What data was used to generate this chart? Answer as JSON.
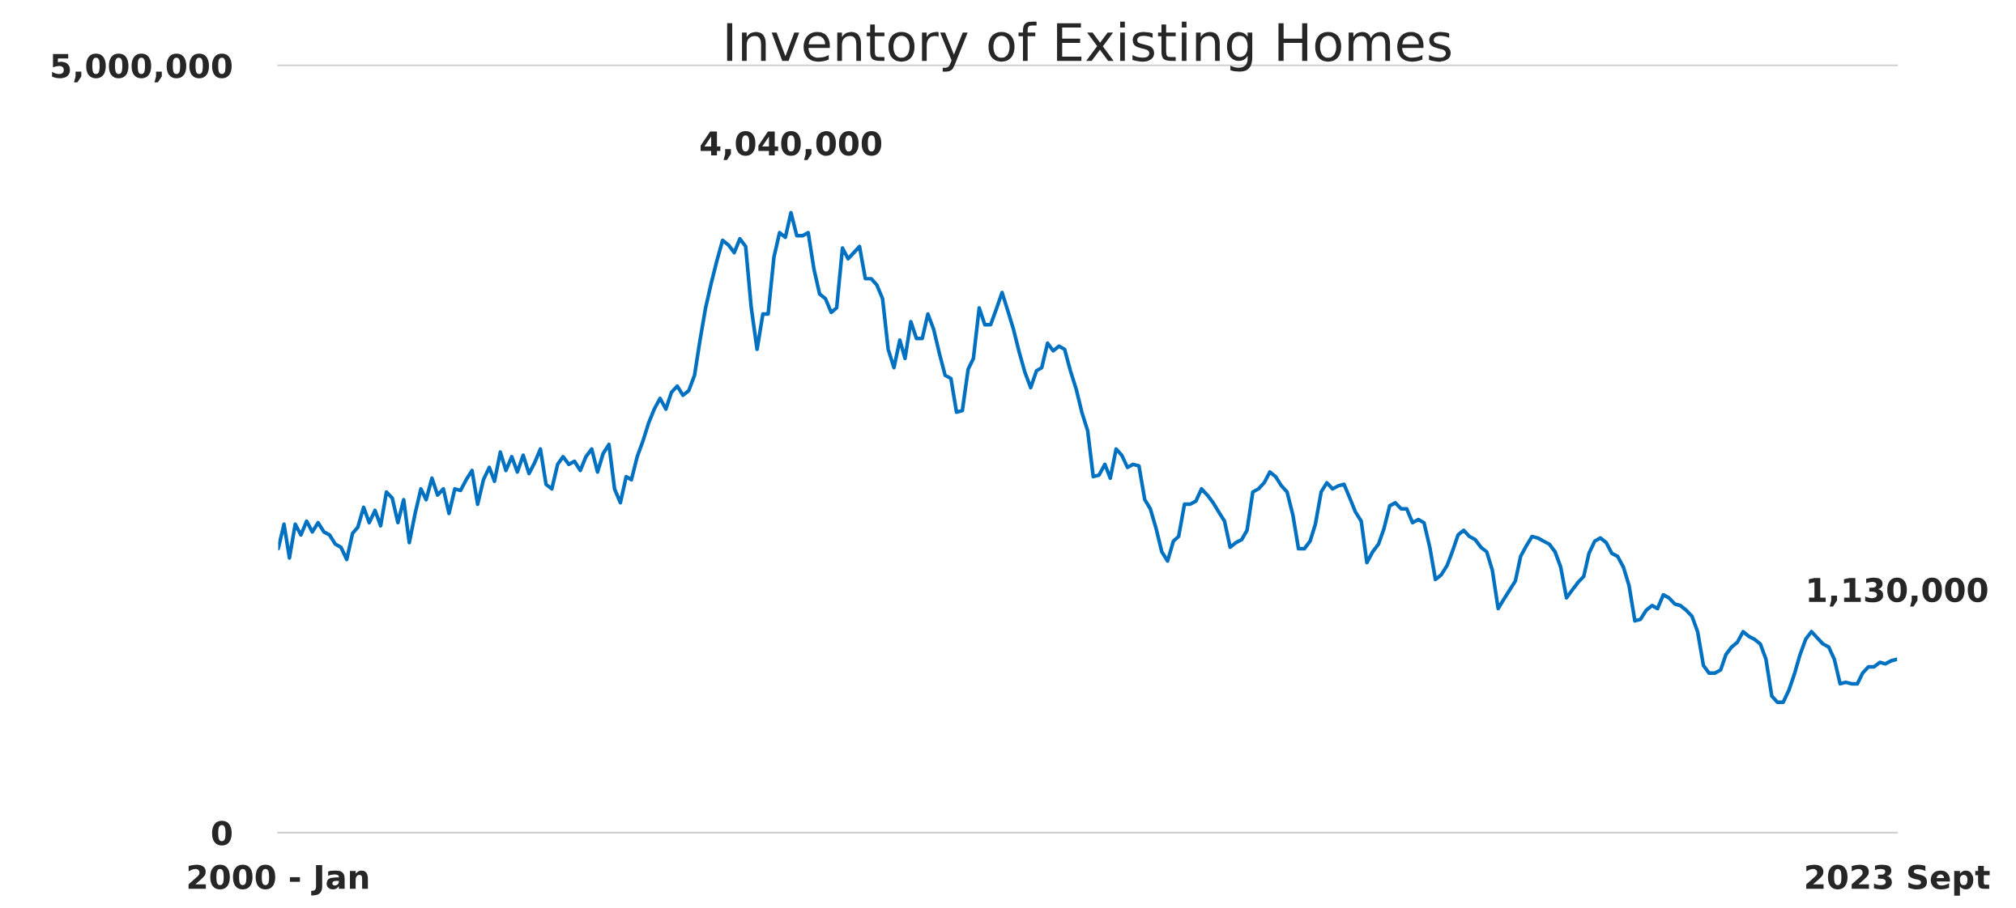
{
  "chart_data": {
    "type": "line",
    "title": "Inventory of Existing Homes",
    "x": [
      "2000-01",
      "2000-02",
      "2000-03",
      "2000-04",
      "2000-05",
      "2000-06",
      "2000-07",
      "2000-08",
      "2000-09",
      "2000-10",
      "2000-11",
      "2000-12",
      "2001-01",
      "2001-02",
      "2001-03",
      "2001-04",
      "2001-05",
      "2001-06",
      "2001-07",
      "2001-08",
      "2001-09",
      "2001-10",
      "2001-11",
      "2001-12",
      "2002-01",
      "2002-02",
      "2002-03",
      "2002-04",
      "2002-05",
      "2002-06",
      "2002-07",
      "2002-08",
      "2002-09",
      "2002-10",
      "2002-11",
      "2002-12",
      "2003-01",
      "2003-02",
      "2003-03",
      "2003-04",
      "2003-05",
      "2003-06",
      "2003-07",
      "2003-08",
      "2003-09",
      "2003-10",
      "2003-11",
      "2003-12",
      "2004-01",
      "2004-02",
      "2004-03",
      "2004-04",
      "2004-05",
      "2004-06",
      "2004-07",
      "2004-08",
      "2004-09",
      "2004-10",
      "2004-11",
      "2004-12",
      "2005-01",
      "2005-02",
      "2005-03",
      "2005-04",
      "2005-05",
      "2005-06",
      "2005-07",
      "2005-08",
      "2005-09",
      "2005-10",
      "2005-11",
      "2005-12",
      "2006-01",
      "2006-02",
      "2006-03",
      "2006-04",
      "2006-05",
      "2006-06",
      "2006-07",
      "2006-08",
      "2006-09",
      "2006-10",
      "2006-11",
      "2006-12",
      "2007-01",
      "2007-02",
      "2007-03",
      "2007-04",
      "2007-05",
      "2007-06",
      "2007-07",
      "2007-08",
      "2007-09",
      "2007-10",
      "2007-11",
      "2007-12",
      "2008-01",
      "2008-02",
      "2008-03",
      "2008-04",
      "2008-05",
      "2008-06",
      "2008-07",
      "2008-08",
      "2008-09",
      "2008-10",
      "2008-11",
      "2008-12",
      "2009-01",
      "2009-02",
      "2009-03",
      "2009-04",
      "2009-05",
      "2009-06",
      "2009-07",
      "2009-08",
      "2009-09",
      "2009-10",
      "2009-11",
      "2009-12",
      "2010-01",
      "2010-02",
      "2010-03",
      "2010-04",
      "2010-05",
      "2010-06",
      "2010-07",
      "2010-08",
      "2010-09",
      "2010-10",
      "2010-11",
      "2010-12",
      "2011-01",
      "2011-02",
      "2011-03",
      "2011-04",
      "2011-05",
      "2011-06",
      "2011-07",
      "2011-08",
      "2011-09",
      "2011-10",
      "2011-11",
      "2011-12",
      "2012-01",
      "2012-02",
      "2012-03",
      "2012-04",
      "2012-05",
      "2012-06",
      "2012-07",
      "2012-08",
      "2012-09",
      "2012-10",
      "2012-11",
      "2012-12",
      "2013-01",
      "2013-02",
      "2013-03",
      "2013-04",
      "2013-05",
      "2013-06",
      "2013-07",
      "2013-08",
      "2013-09",
      "2013-10",
      "2013-11",
      "2013-12",
      "2014-01",
      "2014-02",
      "2014-03",
      "2014-04",
      "2014-05",
      "2014-06",
      "2014-07",
      "2014-08",
      "2014-09",
      "2014-10",
      "2014-11",
      "2014-12",
      "2015-01",
      "2015-02",
      "2015-03",
      "2015-04",
      "2015-05",
      "2015-06",
      "2015-07",
      "2015-08",
      "2015-09",
      "2015-10",
      "2015-11",
      "2015-12",
      "2016-01",
      "2016-02",
      "2016-03",
      "2016-04",
      "2016-05",
      "2016-06",
      "2016-07",
      "2016-08",
      "2016-09",
      "2016-10",
      "2016-11",
      "2016-12",
      "2017-01",
      "2017-02",
      "2017-03",
      "2017-04",
      "2017-05",
      "2017-06",
      "2017-07",
      "2017-08",
      "2017-09",
      "2017-10",
      "2017-11",
      "2017-12",
      "2018-01",
      "2018-02",
      "2018-03",
      "2018-04",
      "2018-05",
      "2018-06",
      "2018-07",
      "2018-08",
      "2018-09",
      "2018-10",
      "2018-11",
      "2018-12",
      "2019-01",
      "2019-02",
      "2019-03",
      "2019-04",
      "2019-05",
      "2019-06",
      "2019-07",
      "2019-08",
      "2019-09",
      "2019-10",
      "2019-11",
      "2019-12",
      "2020-01",
      "2020-02",
      "2020-03",
      "2020-04",
      "2020-05",
      "2020-06",
      "2020-07",
      "2020-08",
      "2020-09",
      "2020-10",
      "2020-11",
      "2020-12",
      "2021-01",
      "2021-02",
      "2021-03",
      "2021-04",
      "2021-05",
      "2021-06",
      "2021-07",
      "2021-08",
      "2021-09",
      "2021-10",
      "2021-11",
      "2021-12",
      "2022-01",
      "2022-02",
      "2022-03",
      "2022-04",
      "2022-05",
      "2022-06",
      "2022-07",
      "2022-08",
      "2022-09",
      "2022-10",
      "2022-11",
      "2022-12",
      "2023-01",
      "2023-02",
      "2023-03",
      "2023-04",
      "2023-05",
      "2023-06",
      "2023-07",
      "2023-08",
      "2023-09"
    ],
    "series": [
      {
        "color": "#0070c0",
        "values": [
          1850000,
          2010000,
          1790000,
          2010000,
          1940000,
          2030000,
          1960000,
          2020000,
          1960000,
          1940000,
          1880000,
          1860000,
          1780000,
          1950000,
          1990000,
          2120000,
          2020000,
          2100000,
          2000000,
          2220000,
          2180000,
          2020000,
          2170000,
          1890000,
          2080000,
          2240000,
          2170000,
          2310000,
          2200000,
          2240000,
          2080000,
          2240000,
          2230000,
          2300000,
          2360000,
          2140000,
          2300000,
          2380000,
          2290000,
          2480000,
          2360000,
          2450000,
          2350000,
          2460000,
          2340000,
          2410000,
          2500000,
          2270000,
          2240000,
          2400000,
          2450000,
          2400000,
          2420000,
          2360000,
          2450000,
          2500000,
          2350000,
          2470000,
          2530000,
          2240000,
          2150000,
          2320000,
          2300000,
          2450000,
          2550000,
          2670000,
          2760000,
          2830000,
          2760000,
          2870000,
          2910000,
          2850000,
          2880000,
          2980000,
          3200000,
          3420000,
          3580000,
          3730000,
          3860000,
          3830000,
          3780000,
          3870000,
          3820000,
          3420000,
          3150000,
          3380000,
          3380000,
          3750000,
          3910000,
          3880000,
          4040000,
          3890000,
          3890000,
          3910000,
          3670000,
          3510000,
          3480000,
          3390000,
          3420000,
          3810000,
          3740000,
          3780000,
          3820000,
          3610000,
          3610000,
          3570000,
          3480000,
          3150000,
          3030000,
          3210000,
          3090000,
          3330000,
          3220000,
          3220000,
          3380000,
          3280000,
          3120000,
          2980000,
          2960000,
          2740000,
          2750000,
          3020000,
          3090000,
          3420000,
          3310000,
          3310000,
          3410000,
          3520000,
          3400000,
          3280000,
          3130000,
          3000000,
          2900000,
          3010000,
          3030000,
          3190000,
          3140000,
          3170000,
          3150000,
          3010000,
          2890000,
          2740000,
          2620000,
          2320000,
          2330000,
          2400000,
          2310000,
          2500000,
          2460000,
          2380000,
          2400000,
          2390000,
          2170000,
          2110000,
          1980000,
          1830000,
          1770000,
          1900000,
          1930000,
          2140000,
          2140000,
          2160000,
          2240000,
          2200000,
          2150000,
          2090000,
          2030000,
          1860000,
          1890000,
          1910000,
          1970000,
          2220000,
          2240000,
          2280000,
          2350000,
          2320000,
          2260000,
          2220000,
          2070000,
          1850000,
          1850000,
          1900000,
          2010000,
          2220000,
          2280000,
          2240000,
          2260000,
          2270000,
          2180000,
          2090000,
          2030000,
          1760000,
          1830000,
          1880000,
          1980000,
          2130000,
          2150000,
          2110000,
          2110000,
          2020000,
          2040000,
          2020000,
          1860000,
          1650000,
          1680000,
          1740000,
          1830000,
          1940000,
          1970000,
          1930000,
          1910000,
          1860000,
          1830000,
          1710000,
          1460000,
          1520000,
          1580000,
          1640000,
          1800000,
          1870000,
          1930000,
          1920000,
          1900000,
          1880000,
          1830000,
          1730000,
          1530000,
          1580000,
          1630000,
          1670000,
          1820000,
          1900000,
          1920000,
          1890000,
          1820000,
          1800000,
          1730000,
          1610000,
          1380000,
          1390000,
          1450000,
          1480000,
          1460000,
          1550000,
          1530000,
          1490000,
          1480000,
          1450000,
          1410000,
          1310000,
          1090000,
          1040000,
          1040000,
          1060000,
          1160000,
          1210000,
          1240000,
          1310000,
          1280000,
          1260000,
          1230000,
          1130000,
          890000,
          850000,
          850000,
          930000,
          1030000,
          1160000,
          1260000,
          1310000,
          1270000,
          1230000,
          1210000,
          1130000,
          970000,
          980000,
          970000,
          970000,
          1040000,
          1080000,
          1080000,
          1110000,
          1100000,
          1120000,
          1130000
        ]
      }
    ],
    "xlim": [
      "2000-01",
      "2023-09"
    ],
    "xticks": [
      {
        "value": "2000-01",
        "label": "2000 - Jan"
      },
      {
        "value": "2023-09",
        "label": "2023 Sept"
      }
    ],
    "ylim": [
      0,
      5000000
    ],
    "yticks": [
      0,
      {
        "value": 5000000,
        "label": "5,000,000"
      }
    ],
    "legend": false,
    "annotations": [
      {
        "text": "4,040,000",
        "x": "2007-07",
        "y": 4040000
      },
      {
        "text": "1,130,000",
        "x": "2023-09",
        "y": 1130000
      }
    ]
  }
}
